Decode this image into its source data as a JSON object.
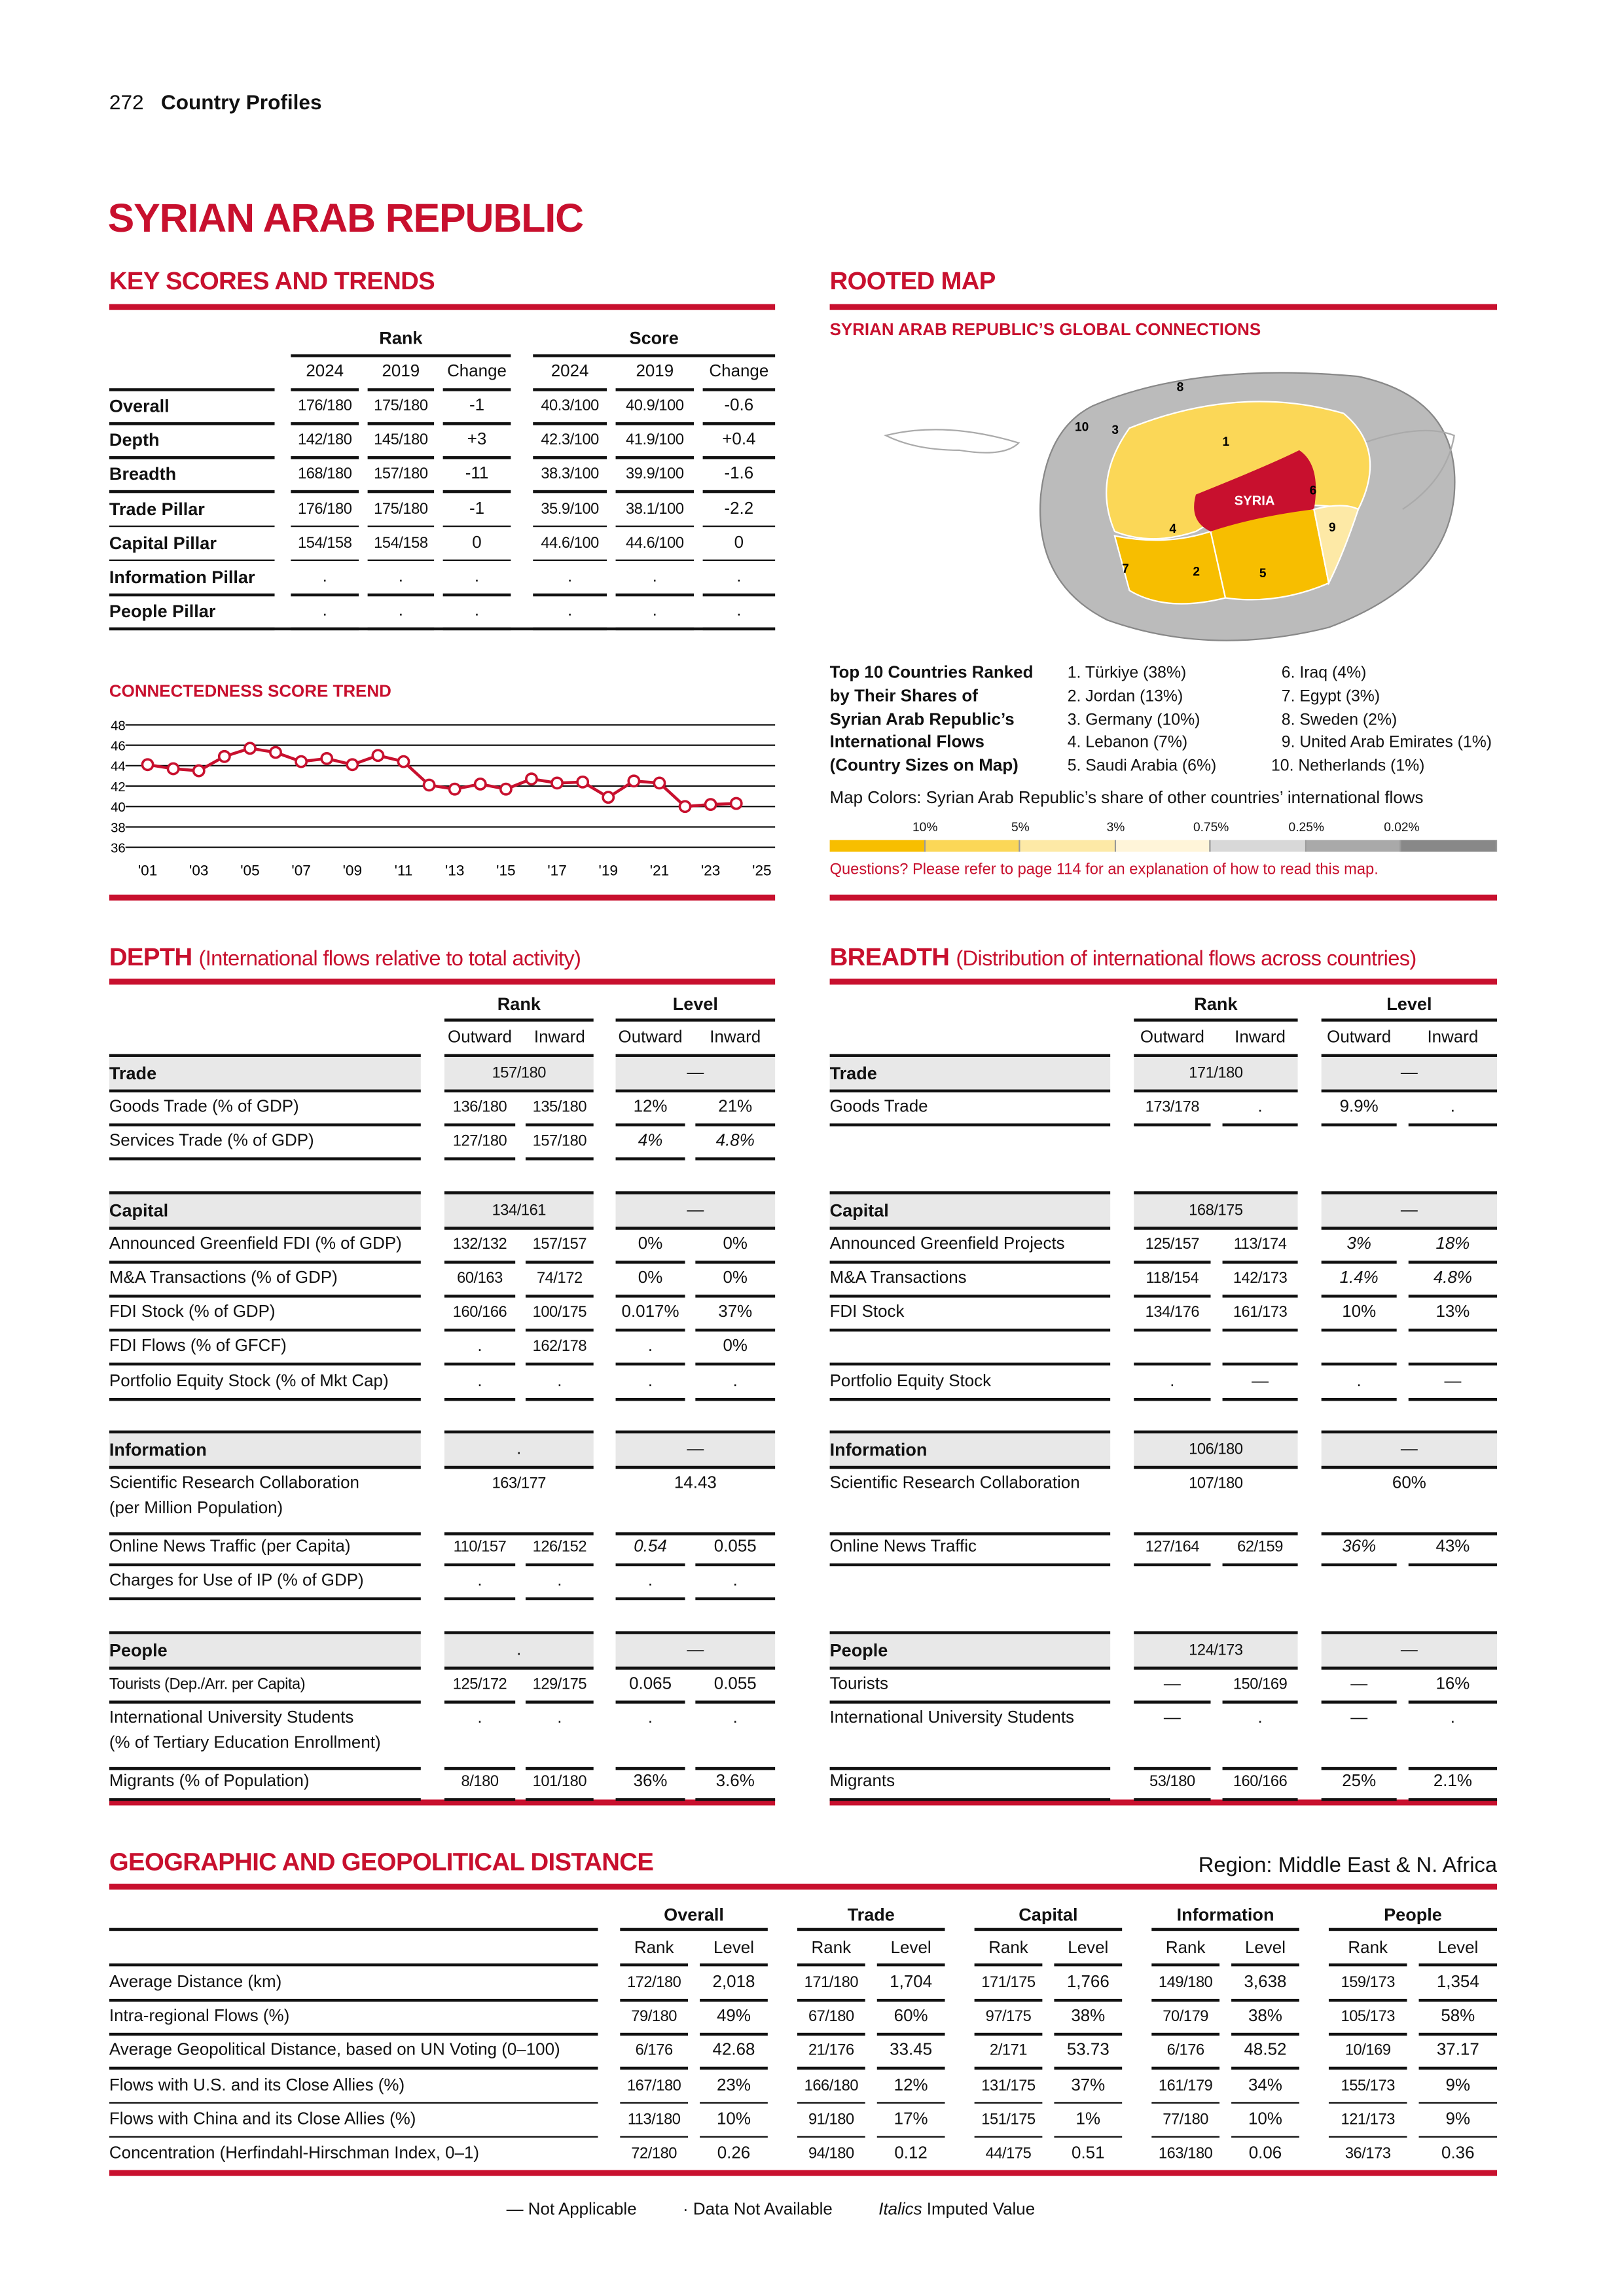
{
  "header": {
    "page_number": "272",
    "section": "Country Profiles"
  },
  "title": "SYRIAN ARAB REPUBLIC",
  "key_scores": {
    "heading": "KEY SCORES AND TRENDS",
    "group_headers": [
      "Rank",
      "Score"
    ],
    "columns": [
      "2024",
      "2019",
      "Change",
      "2024",
      "2019",
      "Change"
    ],
    "rows": [
      {
        "label": "Overall",
        "cells": [
          "176/180",
          "175/180",
          "-1",
          "40.3/100",
          "40.9/100",
          "-0.6"
        ]
      },
      {
        "label": "Depth",
        "cells": [
          "142/180",
          "145/180",
          "+3",
          "42.3/100",
          "41.9/100",
          "+0.4"
        ]
      },
      {
        "label": "Breadth",
        "cells": [
          "168/180",
          "157/180",
          "-11",
          "38.3/100",
          "39.9/100",
          "-1.6"
        ]
      },
      {
        "label": "Trade Pillar",
        "cells": [
          "176/180",
          "175/180",
          "-1",
          "35.9/100",
          "38.1/100",
          "-2.2"
        ]
      },
      {
        "label": "Capital Pillar",
        "cells": [
          "154/158",
          "154/158",
          "0",
          "44.6/100",
          "44.6/100",
          "0"
        ]
      },
      {
        "label": "Information Pillar",
        "cells": [
          ".",
          ".",
          ".",
          ".",
          ".",
          "."
        ]
      },
      {
        "label": "People Pillar",
        "cells": [
          ".",
          ".",
          ".",
          ".",
          ".",
          "."
        ]
      }
    ]
  },
  "chart_data": {
    "type": "line",
    "title": "CONNECTEDNESS SCORE TREND",
    "x": [
      2001,
      2002,
      2003,
      2004,
      2005,
      2006,
      2007,
      2008,
      2009,
      2010,
      2011,
      2012,
      2013,
      2014,
      2015,
      2016,
      2017,
      2018,
      2019,
      2020,
      2021,
      2022,
      2023,
      2024
    ],
    "values": [
      44.1,
      43.7,
      43.5,
      44.9,
      45.7,
      45.3,
      44.4,
      44.7,
      44.1,
      45.0,
      44.4,
      42.1,
      41.7,
      42.2,
      41.7,
      42.7,
      42.3,
      42.4,
      40.9,
      42.5,
      42.3,
      40.0,
      40.2,
      40.3
    ],
    "xlim": [
      2001,
      2025
    ],
    "ylim": [
      36,
      48
    ],
    "yticks": [
      "36",
      "38",
      "40",
      "42",
      "44",
      "46",
      "48"
    ],
    "xticks": [
      "'01",
      "'03",
      "'05",
      "'07",
      "'09",
      "'11",
      "'13",
      "'15",
      "'17",
      "'19",
      "'21",
      "'23",
      "'25"
    ],
    "grid": true,
    "color": "#c8102e"
  },
  "rooted_map": {
    "heading": "ROOTED MAP",
    "subheading": "SYRIAN ARAB REPUBLIC’S GLOBAL CONNECTIONS",
    "country_label": "SYRIA",
    "map_numbers": [
      "1",
      "2",
      "3",
      "4",
      "5",
      "6",
      "7",
      "8",
      "9",
      "10"
    ],
    "top10_title": [
      "Top 10 Countries Ranked",
      "by Their Shares of",
      "Syrian Arab Republic’s",
      "International Flows",
      "(Country Sizes on Map)"
    ],
    "top10": [
      "1. Türkiye (38%)",
      "2. Jordan (13%)",
      "3. Germany (10%)",
      "4. Lebanon (7%)",
      "5. Saudi Arabia (6%)",
      "6. Iraq (4%)",
      "7. Egypt (3%)",
      "8. Sweden (2%)",
      "9. United Arab Emirates (1%)",
      "10. Netherlands (1%)"
    ],
    "colors_caption": "Map Colors: Syrian Arab Republic’s share of other countries’ international flows",
    "scale_labels": [
      "10%",
      "5%",
      "3%",
      "0.75%",
      "0.25%",
      "0.02%"
    ],
    "scale_colors": [
      "#f7be00",
      "#fbd757",
      "#fde9a6",
      "#fff5d9",
      "#d8d8d8",
      "#a9a9a9",
      "#888888"
    ],
    "note": "Questions? Please refer to page 114 for an explanation of how to read this map."
  },
  "depth": {
    "heading": "DEPTH",
    "subheading": "(International flows relative to total activity)",
    "group_headers": [
      "Rank",
      "Level"
    ],
    "columns": [
      "Outward",
      "Inward",
      "Outward",
      "Inward"
    ],
    "rows": [
      {
        "label": "Trade",
        "group": true,
        "merged": [
          "157/180",
          "—"
        ]
      },
      {
        "label": "Goods Trade (% of GDP)",
        "cells": [
          "136/180",
          "135/180",
          "12%",
          "21%"
        ]
      },
      {
        "label": "Services Trade (% of GDP)",
        "cells": [
          "127/180",
          "157/180",
          "4%",
          "4.8%"
        ],
        "italic": [
          2,
          3
        ]
      },
      {
        "label": "Capital",
        "group": true,
        "merged": [
          "134/161",
          "—"
        ]
      },
      {
        "label": "Announced Greenfield FDI (% of GDP)",
        "cells": [
          "132/132",
          "157/157",
          "0%",
          "0%"
        ]
      },
      {
        "label": "M&A Transactions (% of GDP)",
        "cells": [
          "60/163",
          "74/172",
          "0%",
          "0%"
        ]
      },
      {
        "label": "FDI Stock (% of GDP)",
        "cells": [
          "160/166",
          "100/175",
          "0.017%",
          "37%"
        ]
      },
      {
        "label": "FDI Flows (% of GFCF)",
        "cells": [
          ".",
          "162/178",
          ".",
          "0%"
        ]
      },
      {
        "label": "Portfolio Equity Stock (% of Mkt Cap)",
        "cells": [
          ".",
          ".",
          ".",
          "."
        ]
      },
      {
        "label": "Information",
        "group": true,
        "merged": [
          ".",
          "—"
        ]
      },
      {
        "label": "Scientific Research Collaboration",
        "label2": "(per Million Population)",
        "merged": [
          "163/177",
          "14.43"
        ]
      },
      {
        "label": "Online News Traffic (per Capita)",
        "cells": [
          "110/157",
          "126/152",
          "0.54",
          "0.055"
        ],
        "italic": [
          2
        ]
      },
      {
        "label": "Charges for Use of IP (% of GDP)",
        "cells": [
          ".",
          ".",
          ".",
          "."
        ]
      },
      {
        "label": "People",
        "group": true,
        "merged": [
          ".",
          "—"
        ]
      },
      {
        "label": "Tourists (Dep./Arr. per Capita)",
        "cells": [
          "125/172",
          "129/175",
          "0.065",
          "0.055"
        ]
      },
      {
        "label": "International University Students",
        "label2": "(% of Tertiary Education Enrollment)",
        "cells": [
          ".",
          ".",
          ".",
          "."
        ]
      },
      {
        "label": "Migrants (% of Population)",
        "cells": [
          "8/180",
          "101/180",
          "36%",
          "3.6%"
        ]
      }
    ]
  },
  "breadth": {
    "heading": "BREADTH",
    "subheading": "(Distribution of international flows across countries)",
    "group_headers": [
      "Rank",
      "Level"
    ],
    "columns": [
      "Outward",
      "Inward",
      "Outward",
      "Inward"
    ],
    "rows": [
      {
        "label": "Trade",
        "group": true,
        "merged": [
          "171/180",
          "—"
        ]
      },
      {
        "label": "Goods Trade",
        "cells": [
          "173/178",
          ".",
          "9.9%",
          "."
        ]
      },
      {
        "label": "Capital",
        "group": true,
        "merged": [
          "168/175",
          "—"
        ]
      },
      {
        "label": "Announced Greenfield Projects",
        "cells": [
          "125/157",
          "113/174",
          "3%",
          "18%"
        ],
        "italic": [
          2,
          3
        ]
      },
      {
        "label": "M&A Transactions",
        "cells": [
          "118/154",
          "142/173",
          "1.4%",
          "4.8%"
        ],
        "italic": [
          2,
          3
        ]
      },
      {
        "label": "FDI Stock",
        "cells": [
          "134/176",
          "161/173",
          "10%",
          "13%"
        ]
      },
      {
        "label": "",
        "cells": [
          "",
          "",
          "",
          ""
        ]
      },
      {
        "label": "Portfolio Equity Stock",
        "cells": [
          ".",
          "—",
          ".",
          "—"
        ]
      },
      {
        "label": "Information",
        "group": true,
        "merged": [
          "106/180",
          "—"
        ]
      },
      {
        "label": "Scientific Research Collaboration",
        "merged": [
          "107/180",
          "60%"
        ],
        "tall": true
      },
      {
        "label": "Online News Traffic",
        "cells": [
          "127/164",
          "62/159",
          "36%",
          "43%"
        ],
        "italic": [
          2
        ]
      },
      {
        "label": "People",
        "group": true,
        "merged": [
          "124/173",
          "—"
        ]
      },
      {
        "label": "Tourists",
        "cells": [
          "—",
          "150/169",
          "—",
          "16%"
        ]
      },
      {
        "label": "International University Students",
        "cells": [
          "—",
          ".",
          "—",
          "."
        ],
        "tall": true
      },
      {
        "label": "Migrants",
        "cells": [
          "53/180",
          "160/166",
          "25%",
          "2.1%"
        ]
      }
    ]
  },
  "geo": {
    "heading": "GEOGRAPHIC AND GEOPOLITICAL DISTANCE",
    "region": "Region: Middle East & N. Africa",
    "groups": [
      "Overall",
      "Trade",
      "Capital",
      "Information",
      "People"
    ],
    "subcols": [
      "Rank",
      "Level"
    ],
    "rows": [
      {
        "label": "Average Distance (km)",
        "cells": [
          "172/180",
          "2,018",
          "171/180",
          "1,704",
          "171/175",
          "1,766",
          "149/180",
          "3,638",
          "159/173",
          "1,354"
        ]
      },
      {
        "label": "Intra-regional Flows (%)",
        "cells": [
          "79/180",
          "49%",
          "67/180",
          "60%",
          "97/175",
          "38%",
          "70/179",
          "38%",
          "105/173",
          "58%"
        ]
      },
      {
        "label": "Average Geopolitical Distance, based on UN Voting (0–100)",
        "cells": [
          "6/176",
          "42.68",
          "21/176",
          "33.45",
          "2/171",
          "53.73",
          "6/176",
          "48.52",
          "10/169",
          "37.17"
        ]
      },
      {
        "label": "Flows with U.S. and its Close Allies (%)",
        "cells": [
          "167/180",
          "23%",
          "166/180",
          "12%",
          "131/175",
          "37%",
          "161/179",
          "34%",
          "155/173",
          "9%"
        ]
      },
      {
        "label": "Flows with China and its Close Allies (%)",
        "cells": [
          "113/180",
          "10%",
          "91/180",
          "17%",
          "151/175",
          "1%",
          "77/180",
          "10%",
          "121/173",
          "9%"
        ]
      },
      {
        "label": "Concentration (Herfindahl-Hirschman Index, 0–1)",
        "cells": [
          "72/180",
          "0.26",
          "94/180",
          "0.12",
          "44/175",
          "0.51",
          "163/180",
          "0.06",
          "36/173",
          "0.36"
        ]
      }
    ]
  },
  "legend": {
    "not_applicable_symbol": "—",
    "not_applicable": "Not Applicable",
    "not_available_symbol": "·",
    "not_available": "Data Not Available",
    "italics_word": "Italics",
    "imputed": "Imputed Value"
  }
}
